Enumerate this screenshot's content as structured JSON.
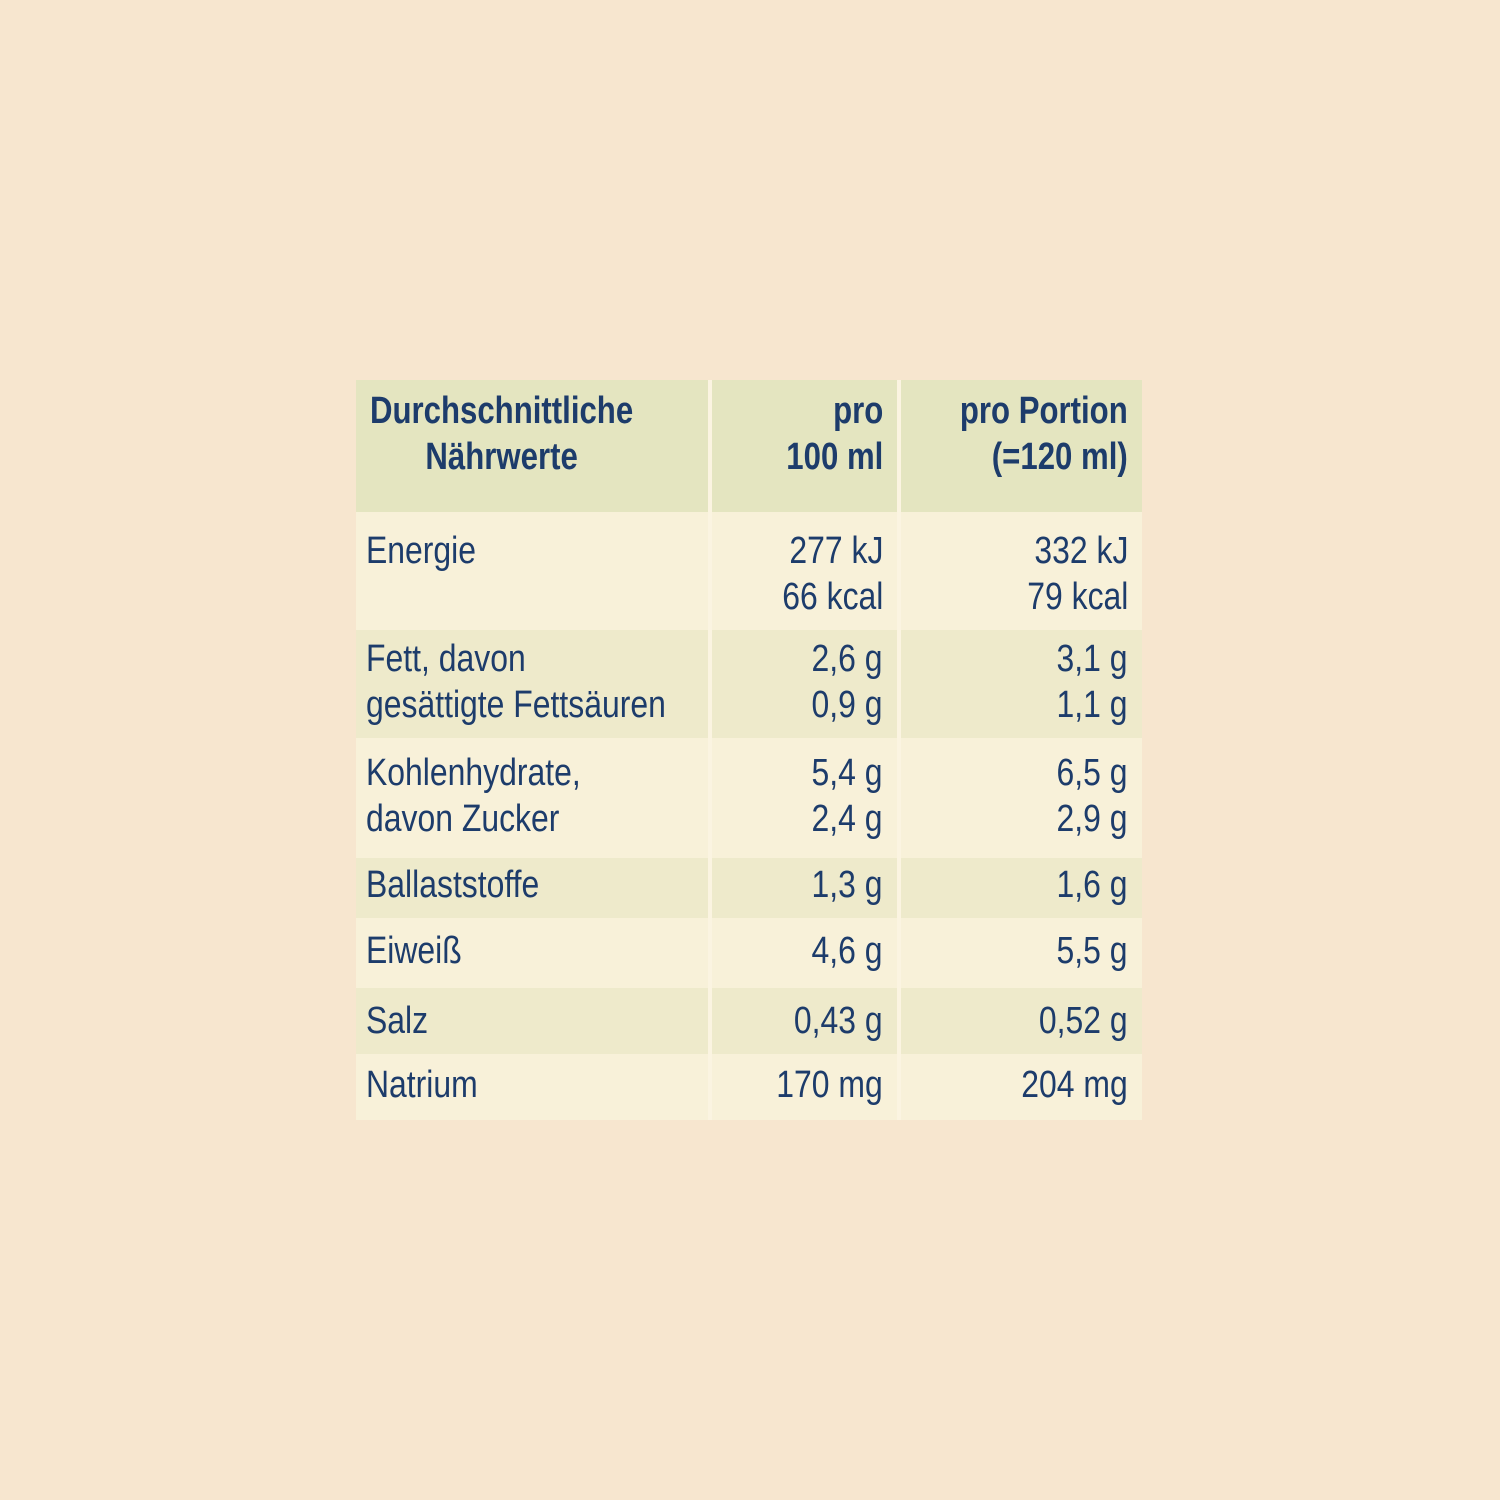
{
  "table": {
    "header": {
      "col1": [
        "Durchschnittliche",
        "Nährwerte"
      ],
      "col2": [
        "pro",
        "100 ml"
      ],
      "col3": [
        "pro Portion",
        "(=120 ml)"
      ]
    },
    "rows": [
      {
        "label": [
          "Energie"
        ],
        "per100": [
          "277 kJ",
          "66 kcal"
        ],
        "portion": [
          "332 kJ",
          "79 kcal"
        ]
      },
      {
        "label": [
          "Fett, davon",
          "gesättigte Fettsäuren"
        ],
        "per100": [
          "2,6 g",
          "0,9 g"
        ],
        "portion": [
          "3,1 g",
          "1,1 g"
        ]
      },
      {
        "label": [
          "Kohlenhydrate,",
          "davon Zucker"
        ],
        "per100": [
          "5,4 g",
          "2,4 g"
        ],
        "portion": [
          "6,5 g",
          "2,9 g"
        ]
      },
      {
        "label": [
          "Ballaststoffe"
        ],
        "per100": [
          "1,3 g"
        ],
        "portion": [
          "1,6 g"
        ]
      },
      {
        "label": [
          "Eiweiß"
        ],
        "per100": [
          "4,6 g"
        ],
        "portion": [
          "5,5 g"
        ]
      },
      {
        "label": [
          "Salz"
        ],
        "per100": [
          "0,43 g"
        ],
        "portion": [
          "0,52 g"
        ]
      },
      {
        "label": [
          "Natrium"
        ],
        "per100": [
          "170 mg"
        ],
        "portion": [
          "204 mg"
        ]
      }
    ]
  },
  "colors": {
    "background": "#f7e6cf",
    "header_bg": "#e4e5c0",
    "row_light": "#f8f1d9",
    "row_dark": "#eeeacb",
    "text": "#1d3c6b"
  }
}
